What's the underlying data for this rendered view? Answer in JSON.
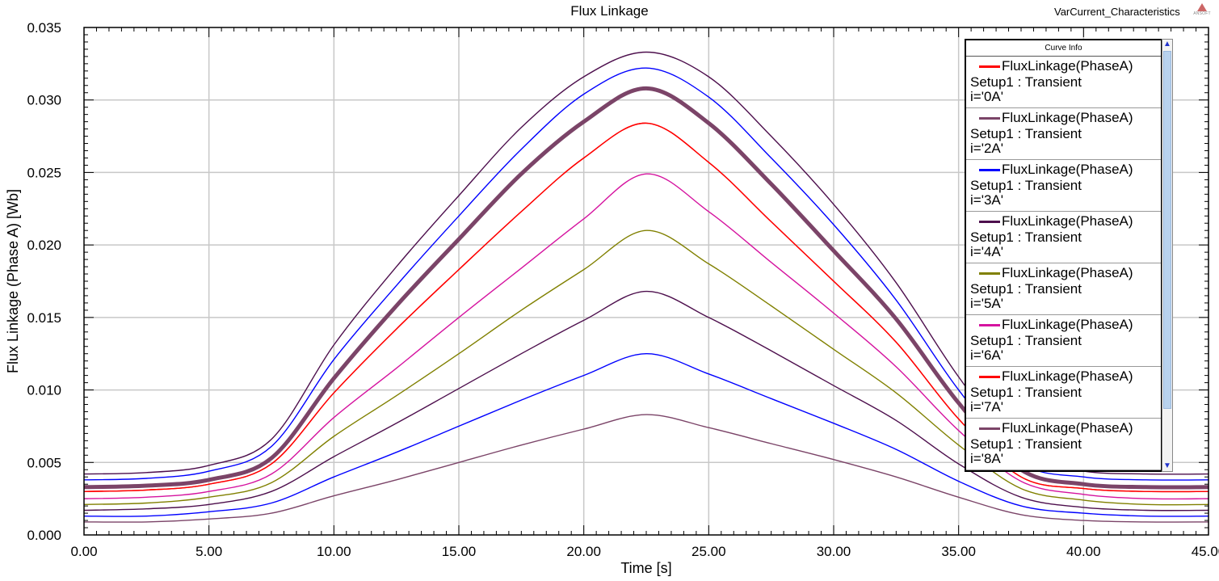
{
  "report_name": "VarCurrent_Characteristics",
  "logo_text": "ANSOFT",
  "legend": {
    "header": "Curve Info",
    "scroll_up": "▲",
    "scroll_down": "▼"
  },
  "chart_data": {
    "type": "line",
    "title": "Flux Linkage",
    "xlabel": "Time [s]",
    "ylabel": "Flux Linkage (Phase A) [Wb]",
    "xlim": [
      0,
      45
    ],
    "ylim": [
      0,
      0.035
    ],
    "xticks": [
      "0.00",
      "5.00",
      "10.00",
      "15.00",
      "20.00",
      "25.00",
      "30.00",
      "35.00",
      "40.00",
      "45.00"
    ],
    "yticks": [
      "0.000",
      "0.005",
      "0.010",
      "0.015",
      "0.020",
      "0.025",
      "0.030",
      "0.035"
    ],
    "grid": true,
    "legend_position": "top-right",
    "x": [
      0,
      2.5,
      5,
      7.5,
      10,
      12.5,
      15,
      17.5,
      20,
      22.5,
      25,
      27.5,
      30,
      32.5,
      35,
      37.5,
      40,
      42.5,
      45
    ],
    "series": [
      {
        "name": "FluxLinkage(PhaseA)",
        "setup": "Setup1 : Transient",
        "variation": "i='0A'",
        "color": "#ff0000",
        "width": 1.4,
        "values": [
          0.003,
          0.0031,
          0.0035,
          0.0049,
          0.0098,
          0.0142,
          0.0183,
          0.0223,
          0.026,
          0.0284,
          0.0257,
          0.0216,
          0.0175,
          0.0133,
          0.008,
          0.004,
          0.0032,
          0.003,
          0.003
        ]
      },
      {
        "name": "FluxLinkage(PhaseA)",
        "setup": "Setup1 : Transient",
        "variation": "i='2A'",
        "color": "#7b4468",
        "width": 1.4,
        "values": [
          0.0009,
          0.0009,
          0.0011,
          0.0015,
          0.0027,
          0.0038,
          0.005,
          0.0062,
          0.0073,
          0.0083,
          0.0074,
          0.0063,
          0.0052,
          0.004,
          0.0026,
          0.0014,
          0.001,
          0.0009,
          0.0009
        ]
      },
      {
        "name": "FluxLinkage(PhaseA)",
        "setup": "Setup1 : Transient",
        "variation": "i='3A'",
        "color": "#0000ff",
        "width": 1.4,
        "values": [
          0.0013,
          0.0013,
          0.0016,
          0.0022,
          0.004,
          0.0057,
          0.0075,
          0.0093,
          0.011,
          0.0125,
          0.0111,
          0.0094,
          0.0077,
          0.0059,
          0.0037,
          0.002,
          0.0015,
          0.0013,
          0.0013
        ]
      },
      {
        "name": "FluxLinkage(PhaseA)",
        "setup": "Setup1 : Transient",
        "variation": "i='4A'",
        "color": "#4d0f4d",
        "width": 1.4,
        "values": [
          0.0017,
          0.0018,
          0.0021,
          0.003,
          0.0054,
          0.0077,
          0.0101,
          0.0125,
          0.0148,
          0.0168,
          0.015,
          0.0127,
          0.0103,
          0.0079,
          0.0049,
          0.0026,
          0.0019,
          0.0017,
          0.0017
        ]
      },
      {
        "name": "FluxLinkage(PhaseA)",
        "setup": "Setup1 : Transient",
        "variation": "i='5A'",
        "color": "#808000",
        "width": 1.4,
        "values": [
          0.0021,
          0.0022,
          0.0026,
          0.0036,
          0.0068,
          0.0096,
          0.0125,
          0.0155,
          0.0183,
          0.021,
          0.0187,
          0.0158,
          0.0128,
          0.0098,
          0.0062,
          0.0032,
          0.0024,
          0.0021,
          0.0021
        ]
      },
      {
        "name": "FluxLinkage(PhaseA)",
        "setup": "Setup1 : Transient",
        "variation": "i='6A'",
        "color": "#d5139f",
        "width": 1.4,
        "values": [
          0.0025,
          0.0026,
          0.003,
          0.0042,
          0.0081,
          0.0115,
          0.015,
          0.0184,
          0.0218,
          0.0249,
          0.0223,
          0.0188,
          0.0153,
          0.0116,
          0.0072,
          0.0037,
          0.0028,
          0.0025,
          0.0025
        ]
      },
      {
        "name": "FluxLinkage(PhaseA)",
        "setup": "Setup1 : Transient",
        "variation": "i='7A'",
        "color": "#ff0000",
        "width": 1.4,
        "values": [
          0.003,
          0.0031,
          0.0035,
          0.0049,
          0.0098,
          0.0142,
          0.0183,
          0.0223,
          0.026,
          0.0284,
          0.0257,
          0.0216,
          0.0175,
          0.0133,
          0.008,
          0.004,
          0.0032,
          0.003,
          0.003
        ]
      },
      {
        "name": "FluxLinkage(PhaseA)",
        "setup": "Setup1 : Transient",
        "variation": "i='8A'",
        "color": "#7b4468",
        "width": 5,
        "values": [
          0.0033,
          0.0034,
          0.0038,
          0.0053,
          0.0108,
          0.0158,
          0.0204,
          0.0249,
          0.0285,
          0.0308,
          0.0284,
          0.0242,
          0.0196,
          0.0149,
          0.0091,
          0.0045,
          0.0035,
          0.0033,
          0.0033
        ]
      },
      {
        "name": "",
        "setup": "",
        "variation": "",
        "color": "#0000ff",
        "width": 1.4,
        "values": [
          0.0038,
          0.0039,
          0.0044,
          0.0061,
          0.0121,
          0.0172,
          0.022,
          0.0266,
          0.0304,
          0.0322,
          0.0302,
          0.026,
          0.0214,
          0.0162,
          0.01,
          0.005,
          0.004,
          0.0038,
          0.0038
        ]
      },
      {
        "name": "",
        "setup": "",
        "variation": "",
        "color": "#4d0f4d",
        "width": 1.4,
        "values": [
          0.0042,
          0.0043,
          0.0048,
          0.0066,
          0.0131,
          0.0185,
          0.0234,
          0.0281,
          0.0316,
          0.0333,
          0.0316,
          0.0275,
          0.0228,
          0.0174,
          0.0109,
          0.0055,
          0.0044,
          0.0042,
          0.0042
        ]
      }
    ]
  }
}
